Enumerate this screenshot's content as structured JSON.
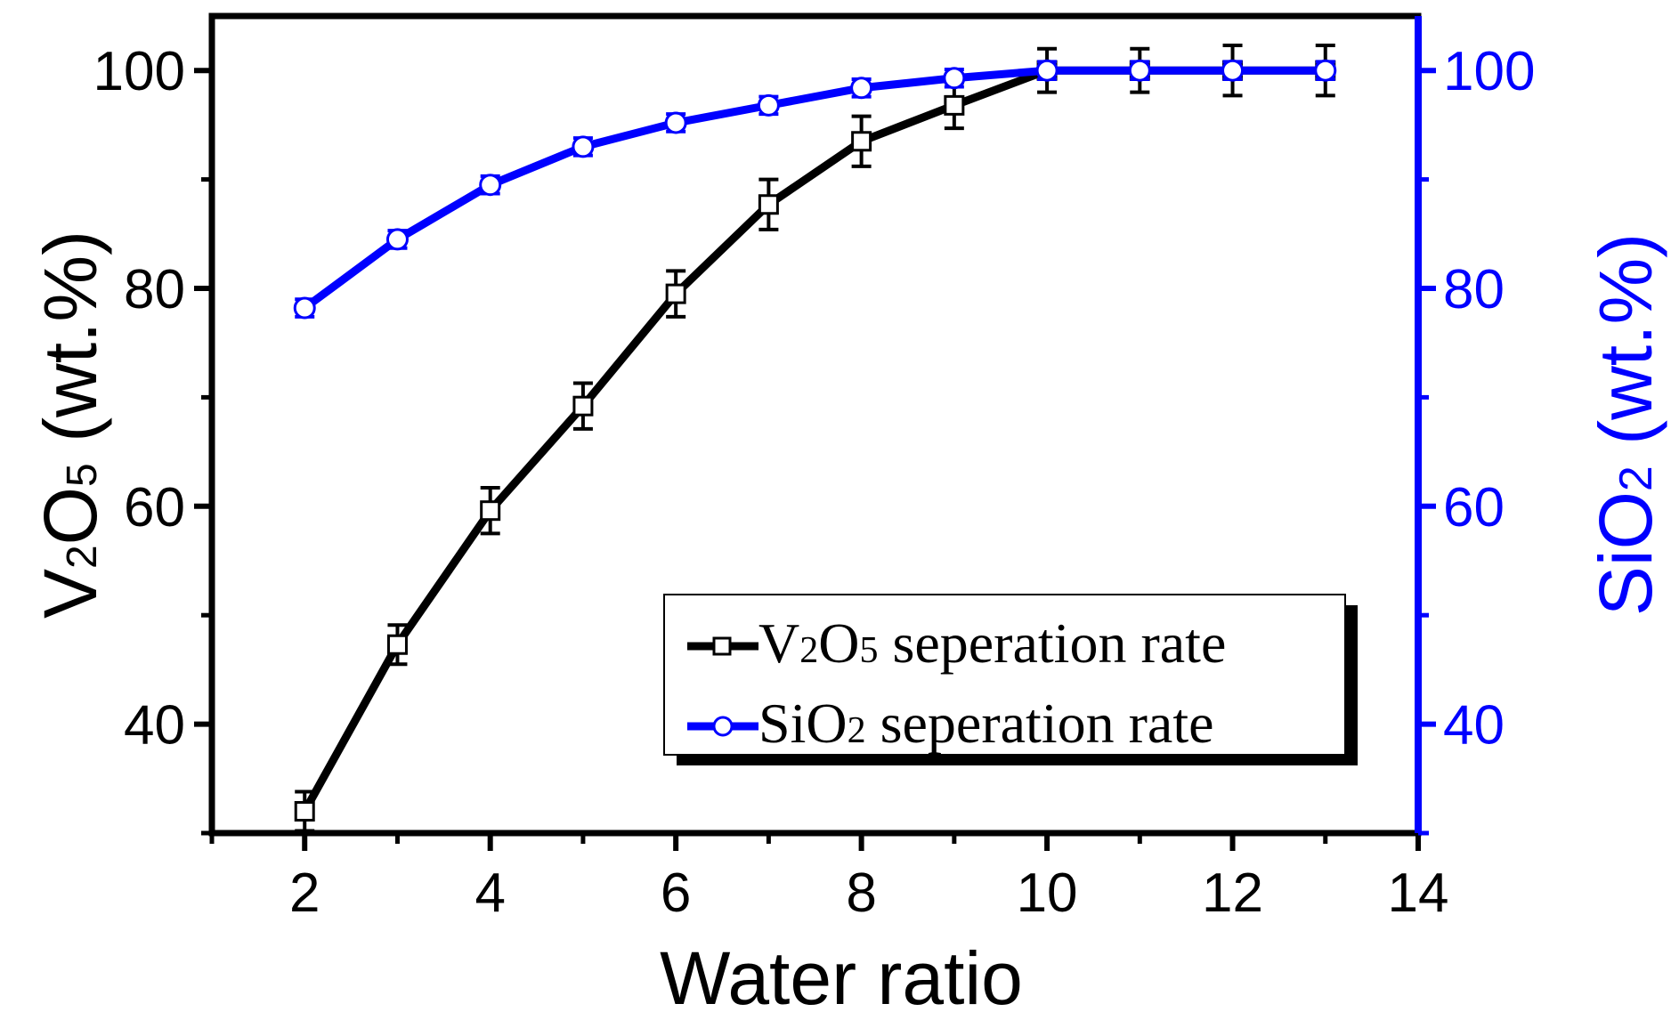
{
  "chart_data": {
    "type": "line",
    "xlabel": "Water ratio",
    "xlim": [
      1,
      14
    ],
    "xticks": [
      2,
      4,
      6,
      8,
      10,
      12,
      14
    ],
    "ylabel_left": {
      "main1": "V",
      "sub1": "2",
      "main2": "O",
      "sub2": "5",
      "rest": " (wt.%)"
    },
    "ylim_left": [
      30,
      105
    ],
    "yticks_left": [
      40,
      60,
      80,
      100
    ],
    "ylabel_right": {
      "main1": "SiO",
      "sub1": "2",
      "rest": " (wt.%)"
    },
    "ylim_right": [
      30,
      105
    ],
    "yticks_right": [
      40,
      60,
      80,
      100
    ],
    "legend_position": "lower-right",
    "series": [
      {
        "name": "V2O5 seperation rate",
        "label": {
          "main1": "V",
          "sub1": "2",
          "main2": "O",
          "sub2": "5",
          "rest": " seperation rate"
        },
        "axis": "left",
        "color": "#000000",
        "marker": "square",
        "x": [
          2,
          3,
          4,
          5,
          6,
          7,
          8,
          9,
          10,
          11,
          12,
          13
        ],
        "y": [
          32,
          47.3,
          59.6,
          69.2,
          79.5,
          87.7,
          93.5,
          96.8,
          100,
          100,
          100,
          100
        ],
        "err": [
          1.8,
          1.8,
          2.1,
          2.1,
          2.1,
          2.3,
          2.3,
          2.1,
          2.0,
          2.0,
          2.3,
          2.3
        ]
      },
      {
        "name": "SiO2 seperation rate",
        "label": {
          "main1": "SiO",
          "sub1": "2",
          "rest": " seperation rate"
        },
        "axis": "right",
        "color": "#0000ff",
        "marker": "circle",
        "x": [
          2,
          3,
          4,
          5,
          6,
          7,
          8,
          9,
          10,
          11,
          12,
          13
        ],
        "y": [
          78.2,
          84.5,
          89.5,
          93,
          95.2,
          96.8,
          98.4,
          99.3,
          100,
          100,
          100,
          100
        ],
        "err": [
          0.8,
          0.8,
          0.8,
          0.8,
          0.8,
          0.8,
          0.8,
          0.8,
          0.8,
          0.8,
          0.8,
          0.8
        ]
      }
    ]
  }
}
